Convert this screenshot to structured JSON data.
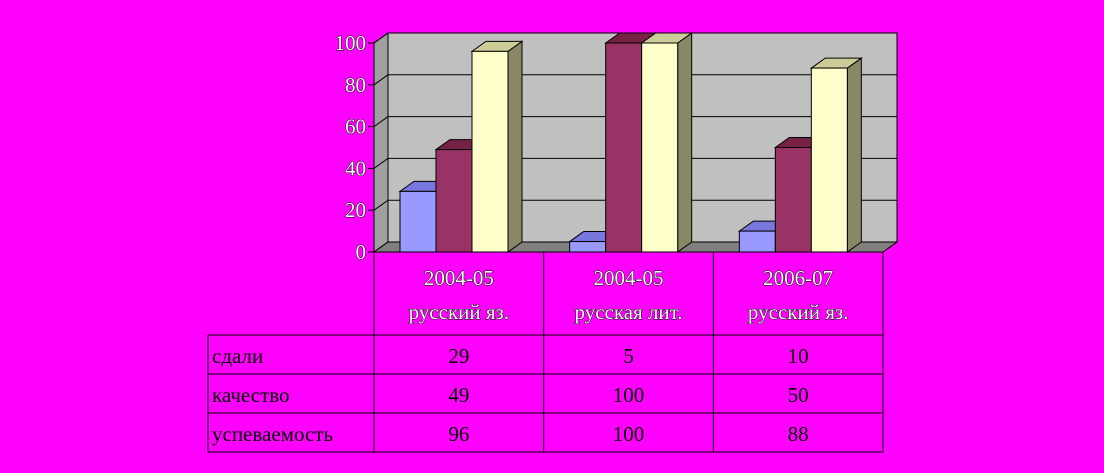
{
  "chart_data": {
    "type": "bar",
    "categories": [
      [
        "2004-05",
        "русский яз."
      ],
      [
        "2004-05",
        "русская лит."
      ],
      [
        "2006-07",
        "русский яз."
      ]
    ],
    "series": [
      {
        "name": "сдали",
        "values": [
          29,
          5,
          10
        ],
        "color": "#9999ff",
        "side_color": "#6666cc",
        "top_color": "#7777dd"
      },
      {
        "name": "качество",
        "values": [
          49,
          100,
          50
        ],
        "color": "#993366",
        "side_color": "#662244",
        "top_color": "#772244"
      },
      {
        "name": "успеваемость",
        "values": [
          96,
          100,
          88
        ],
        "color": "#ffffcc",
        "side_color": "#888866",
        "top_color": "#cccc99"
      }
    ],
    "yticks": [
      0,
      20,
      40,
      60,
      80,
      100
    ],
    "ylim": [
      0,
      100
    ],
    "grid": true,
    "data_table": true,
    "colors": {
      "background": "#ff00ff",
      "wall": "#c0c0c0",
      "floor": "#808080"
    }
  }
}
